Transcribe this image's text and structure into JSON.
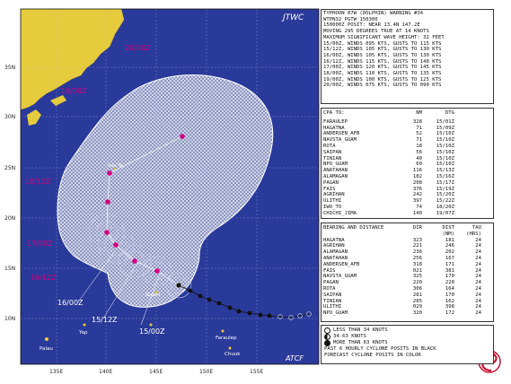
{
  "map": {
    "agency": "JTWC",
    "footer_agency": "ATCF",
    "lat_labels": [
      "35N",
      "30N",
      "25N",
      "20N",
      "15N",
      "10N"
    ],
    "lon_labels": [
      "135E",
      "140E",
      "145E",
      "150E",
      "155E"
    ],
    "places": [
      {
        "name": "Palau"
      },
      {
        "name": "Yap"
      },
      {
        "name": "Guam"
      },
      {
        "name": "Faraulep"
      },
      {
        "name": "Chuuk"
      },
      {
        "name": "Iwo To"
      },
      {
        "name": "Saipan"
      }
    ],
    "time_labels_pink": [
      "20/00Z",
      "19/00Z",
      "18/12Z",
      "17/00Z",
      "16/12Z"
    ],
    "time_labels_white": [
      "16/00Z",
      "15/12Z",
      "15/00Z"
    ],
    "colors": {
      "ocean": "#2a3a9a",
      "land": "#e6cc3c",
      "forecast_zone": "#ffffff",
      "track": "#111111",
      "forecast_pos": "#d4007f"
    },
    "forecast_cone": "34 knot wind radius forecast area"
  },
  "warning": {
    "lines": [
      "TYPHOON 07W (DOLPHIN) WARNING #34",
      "WTPN32 PGTW 150300",
      "150000Z POSIT: NEAR 13.4N 147.2E",
      "MOVING 295 DEGREES TRUE AT 14 KNOTS",
      "MAXIMUM SIGNIFICANT WAVE HEIGHT: 32 FEET",
      "15/00Z, WINDS 095 KTS, GUSTS TO 115 KTS",
      "15/12Z, WINDS 105 KTS, GUSTS TO 130 KTS",
      "16/00Z, WINDS 105 KTS, GUSTS TO 130 KTS",
      "16/12Z, WINDS 115 KTS, GUSTS TO 140 KTS",
      "17/00Z, WINDS 120 KTS, GUSTS TO 145 KTS",
      "18/00Z, WINDS 110 KTS, GUSTS TO 135 KTS",
      "19/00Z, WINDS 100 KTS, GUSTS TO 125 KTS",
      "20/00Z, WINDS 075 KTS, GUSTS TO 090 KTS"
    ]
  },
  "cpa": {
    "header": [
      "CPA TO:",
      "NM",
      "DTG"
    ],
    "rows": [
      [
        "FARAULEP",
        "328",
        "15/01Z"
      ],
      [
        "HAGATNA",
        "71",
        "15/09Z"
      ],
      [
        "ANDERSEN_AFB",
        "52",
        "15/10Z"
      ],
      [
        "NAVSTA_GUAM",
        "71",
        "15/10Z"
      ],
      [
        "ROTA",
        "18",
        "15/10Z"
      ],
      [
        "SAIPAN",
        "56",
        "15/10Z"
      ],
      [
        "TINIAN",
        "40",
        "15/10Z"
      ],
      [
        "NPO_GUAM",
        "60",
        "15/10Z"
      ],
      [
        "ANATAHAN",
        "116",
        "15/13Z"
      ],
      [
        "ALAMAGAN",
        "182",
        "15/16Z"
      ],
      [
        "PAGAN",
        "208",
        "15/17Z"
      ],
      [
        "FAIS",
        "376",
        "15/19Z"
      ],
      [
        "AGRIHAN",
        "242",
        "15/20Z"
      ],
      [
        "ULITHI",
        "397",
        "15/22Z"
      ],
      [
        "IWO_TO",
        "74",
        "18/20Z"
      ],
      [
        "CHICHI_JIMA",
        "140",
        "19/07Z"
      ]
    ]
  },
  "bearing": {
    "header": [
      "BEARING AND DISTANCE",
      "DIR",
      "DIST\n(NM)",
      "TAU\n(HRS)"
    ],
    "header_top": [
      "BEARING AND DISTANCE",
      "DIR",
      "DIST",
      "TAU"
    ],
    "header_sub": [
      "",
      "",
      "(NM)",
      "(HRS)"
    ],
    "rows": [
      [
        "HAGATNA",
        "323",
        "181",
        "24"
      ],
      [
        "AGRIHAN",
        "221",
        "246",
        "24"
      ],
      [
        "ALAMAGAN",
        "236",
        "202",
        "24"
      ],
      [
        "ANATAHAN",
        "256",
        "167",
        "24"
      ],
      [
        "ANDERSEN_AFB",
        "318",
        "171",
        "24"
      ],
      [
        "FAIS",
        "021",
        "381",
        "24"
      ],
      [
        "NAVSTA_GUAM",
        "325",
        "170",
        "24"
      ],
      [
        "PAGAN",
        "220",
        "220",
        "24"
      ],
      [
        "ROTA",
        "306",
        "164",
        "24"
      ],
      [
        "SAIPAN",
        "281",
        "170",
        "24"
      ],
      [
        "TINIAN",
        "285",
        "162",
        "24"
      ],
      [
        "ULITHI",
        "029",
        "398",
        "24"
      ],
      [
        "NPO_GUAM",
        "320",
        "172",
        "24"
      ]
    ]
  },
  "legend": {
    "items": [
      {
        "label": "LESS THAN 34 KNOTS",
        "symbol": "open-circle"
      },
      {
        "label": "34-63 KNOTS",
        "symbol": "half-circle"
      },
      {
        "label": "MORE THAN 63 KNOTS",
        "symbol": "filled-circle"
      }
    ],
    "notes": [
      "PAST 6 HOURLY CYCLONE POSITS IN BLACK",
      "FORECAST CYCLONE POSITS IN COLOR"
    ]
  },
  "logo_name": "typhoon-logo"
}
